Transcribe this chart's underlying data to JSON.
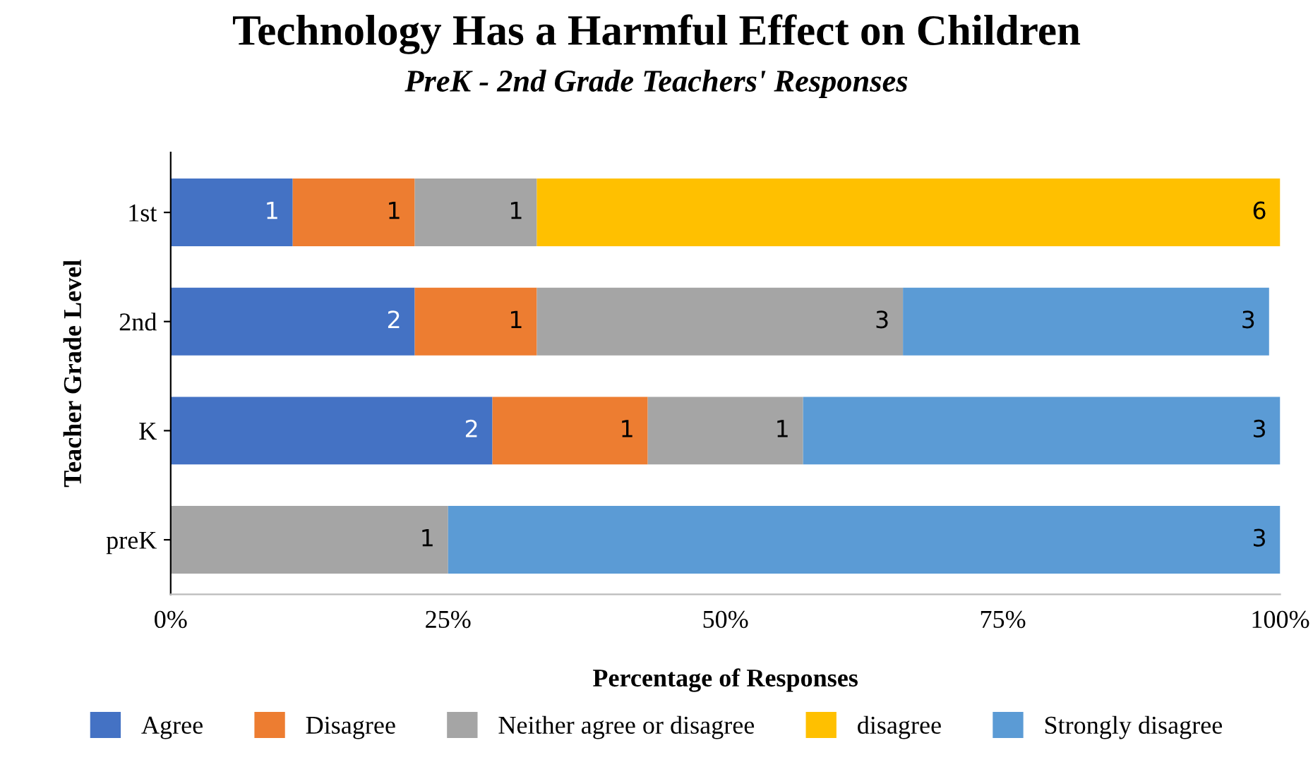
{
  "chart_data": {
    "type": "bar",
    "orientation": "horizontal",
    "stacked": true,
    "title": "Technology Has a Harmful Effect on Children",
    "subtitle": "PreK - 2nd Grade Teachers' Responses",
    "xlabel": "Percentage of Responses",
    "ylabel": "Teacher Grade Level",
    "categories": [
      "1st",
      "2nd",
      "K",
      "preK"
    ],
    "series": [
      {
        "name": "Agree",
        "color": "#4472c4",
        "values": [
          11,
          22,
          29,
          null
        ]
      },
      {
        "name": "Disagree",
        "color": "#ed7d31",
        "values": [
          11,
          11,
          14,
          null
        ]
      },
      {
        "name": "Neither agree or disagree",
        "color": "#a5a5a5",
        "values": [
          11,
          33,
          14,
          25
        ]
      },
      {
        "name": "disagree",
        "color": "#ffc000",
        "values": [
          67,
          null,
          null,
          null
        ]
      },
      {
        "name": "Strongly disagree",
        "color": "#5b9bd5",
        "values": [
          null,
          33,
          43,
          75
        ]
      }
    ],
    "annotations": [
      {
        "text": "1",
        "x": 11,
        "y": "1st"
      },
      {
        "text": "1",
        "x": 22,
        "y": "1st"
      },
      {
        "text": "1",
        "x": 33,
        "y": "1st"
      },
      {
        "text": "6",
        "x": 100,
        "y": "1st"
      },
      {
        "text": "2",
        "x": 22,
        "y": "2nd"
      },
      {
        "text": "1",
        "x": 33,
        "y": "2nd"
      },
      {
        "text": "3",
        "x": 66,
        "y": "2nd"
      },
      {
        "text": "3",
        "x": 99,
        "y": "2nd"
      },
      {
        "text": "2",
        "x": 29,
        "y": "K"
      },
      {
        "text": "1",
        "x": 43,
        "y": "K"
      },
      {
        "text": "1",
        "x": 57,
        "y": "K"
      },
      {
        "text": "3",
        "x": 100,
        "y": "K"
      },
      {
        "text": "1",
        "x": 25,
        "y": "preK"
      },
      {
        "text": "3",
        "x": 100,
        "y": "preK"
      }
    ],
    "xlim": [
      0,
      100
    ],
    "xticks": [
      {
        "value": 0,
        "label": "0%"
      },
      {
        "value": 25,
        "label": "25%"
      },
      {
        "value": 50,
        "label": "50%"
      },
      {
        "value": 75,
        "label": "75%"
      },
      {
        "value": 100,
        "label": "100%"
      }
    ],
    "grid": false,
    "legend": "bottom"
  }
}
